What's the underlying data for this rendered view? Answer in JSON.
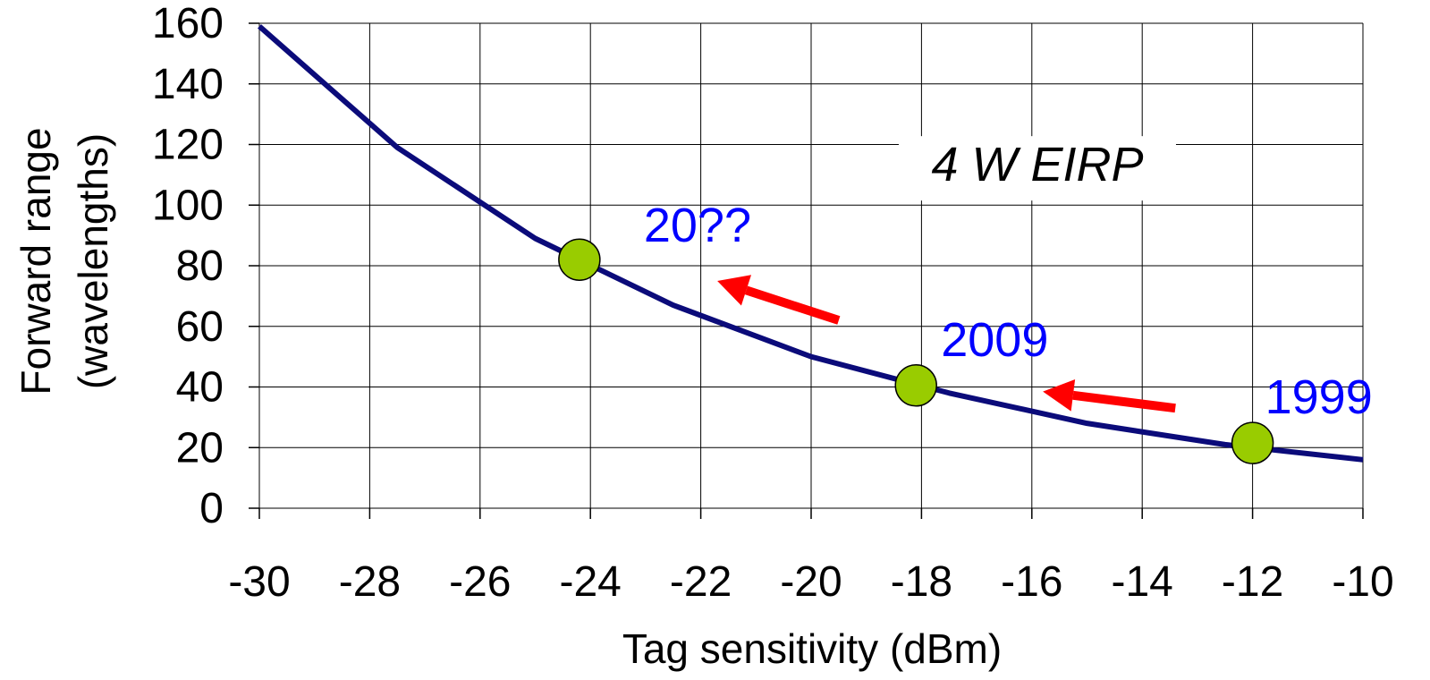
{
  "chart_data": {
    "type": "line",
    "title": "",
    "xlabel": "Tag sensitivity (dBm)",
    "ylabel_lines": [
      "Forward range",
      "(wavelengths)"
    ],
    "xlim": [
      -30,
      -10
    ],
    "ylim": [
      0,
      160
    ],
    "x_ticks": [
      "-30",
      "-28",
      "-26",
      "-24",
      "-22",
      "-20",
      "-18",
      "-16",
      "-14",
      "-12",
      "-10"
    ],
    "y_ticks": [
      "0",
      "20",
      "40",
      "60",
      "80",
      "100",
      "120",
      "140",
      "160"
    ],
    "x_tick_values": [
      -30,
      -28,
      -26,
      -24,
      -22,
      -20,
      -18,
      -16,
      -14,
      -12,
      -10
    ],
    "y_tick_values": [
      0,
      20,
      40,
      60,
      80,
      100,
      120,
      140,
      160
    ],
    "grid": true,
    "legend": "none",
    "series": [
      {
        "color": "#0b0b7a",
        "points": [
          {
            "x": -30,
            "y": 159
          },
          {
            "x": -27.5,
            "y": 119
          },
          {
            "x": -25,
            "y": 89
          },
          {
            "x": -22.5,
            "y": 67
          },
          {
            "x": -20,
            "y": 50
          },
          {
            "x": -17.5,
            "y": 38
          },
          {
            "x": -15,
            "y": 28
          },
          {
            "x": -12.5,
            "y": 21
          },
          {
            "x": -10,
            "y": 16
          }
        ]
      }
    ],
    "markers": [
      {
        "x": -24.2,
        "y": 82,
        "color": "#99cc00",
        "label": "20??"
      },
      {
        "x": -18.1,
        "y": 40.5,
        "color": "#99cc00",
        "label": "2009"
      },
      {
        "x": -12,
        "y": 21.5,
        "color": "#99cc00",
        "label": "1999"
      }
    ],
    "annotations": {
      "eirp": "4 W EIRP",
      "year_color": "#0000ff",
      "arrow_color": "#ff0000",
      "arrows": [
        {
          "from": {
            "x": -13.4,
            "y": 33
          },
          "to": {
            "x": -15.8,
            "y": 38.5
          }
        },
        {
          "from": {
            "x": -19.5,
            "y": 62
          },
          "to": {
            "x": -21.7,
            "y": 75
          }
        }
      ]
    }
  }
}
